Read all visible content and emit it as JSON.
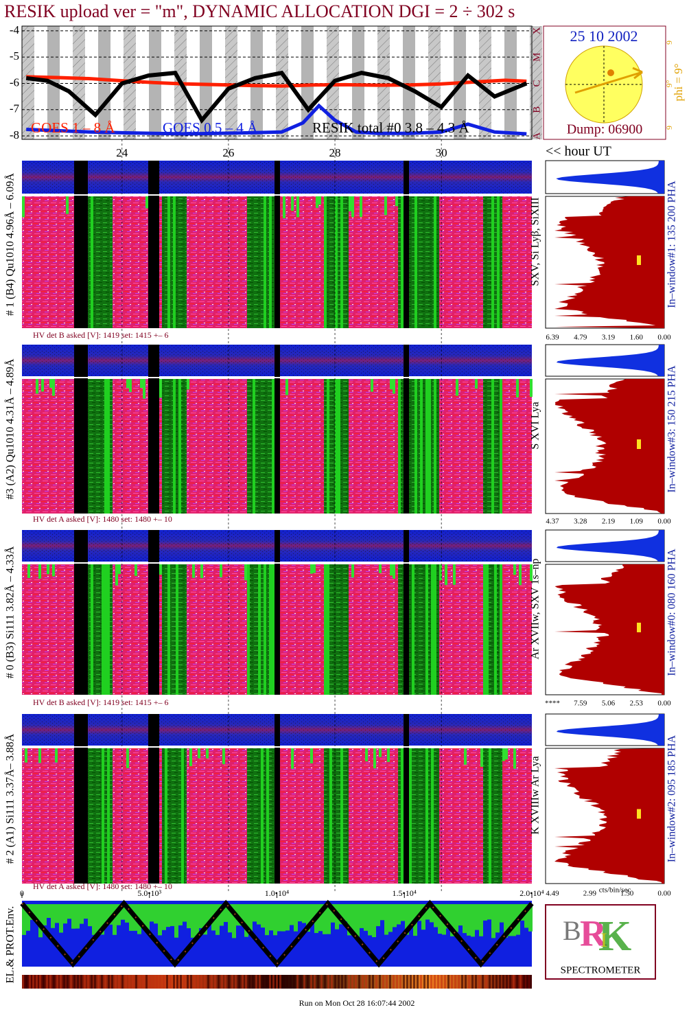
{
  "title": "RESIK upload ver = \"m\", DYNAMIC ALLOCATION  DGI =   2 ÷ 302 s",
  "chart_data": {
    "type": "line",
    "xlim": [
      22.12,
      31.7
    ],
    "xticks": [
      24,
      26,
      28,
      30
    ],
    "ylim": [
      -8.13,
      -3.82
    ],
    "yticks": [
      -4,
      -5,
      -6,
      -7,
      -8
    ],
    "classes": [
      "X",
      "M",
      "C",
      "B",
      "A"
    ],
    "series": [
      {
        "name": "GOES 1 – 8 Å",
        "color": "#ff2000",
        "x": [
          22.2,
          22.8,
          23.4,
          24.0,
          24.6,
          25.2,
          25.8,
          26.4,
          27.0,
          27.6,
          28.2,
          28.8,
          29.4,
          30.0,
          30.6,
          31.2,
          31.6
        ],
        "values": [
          -5.75,
          -5.78,
          -5.82,
          -5.9,
          -5.97,
          -6.02,
          -6.05,
          -6.08,
          -6.1,
          -6.06,
          -6.05,
          -6.07,
          -6.06,
          -6.02,
          -5.95,
          -5.88,
          -5.92
        ]
      },
      {
        "name": "GOES 0.5 – 4 Å",
        "color": "#1020e0",
        "x": [
          22.2,
          22.8,
          23.4,
          24.0,
          24.6,
          25.2,
          25.8,
          26.4,
          27.0,
          27.4,
          27.7,
          28.0,
          28.4,
          28.8,
          29.4,
          30.0,
          30.5,
          31.0,
          31.6
        ],
        "values": [
          -7.75,
          -7.8,
          -7.85,
          -7.88,
          -7.9,
          -7.92,
          -7.9,
          -7.88,
          -7.85,
          -7.5,
          -6.85,
          -7.4,
          -7.85,
          -7.9,
          -7.9,
          -7.85,
          -7.55,
          -7.85,
          -7.92
        ]
      },
      {
        "name": "RESIK total #0 3.8 – 4.3 Å",
        "color": "#000000",
        "x": [
          22.2,
          22.6,
          23.0,
          23.5,
          24.0,
          24.5,
          25.0,
          25.5,
          26.0,
          26.5,
          27.0,
          27.5,
          28.0,
          28.5,
          29.0,
          29.5,
          30.0,
          30.5,
          31.0,
          31.6
        ],
        "values": [
          -5.8,
          -5.9,
          -6.3,
          -7.2,
          -6.0,
          -5.7,
          -5.6,
          -7.4,
          -6.2,
          -5.8,
          -5.6,
          -7.0,
          -5.9,
          -5.6,
          -5.8,
          -6.3,
          -6.9,
          -5.7,
          -6.5,
          -6.0
        ]
      }
    ]
  },
  "hour_label": "<< hour UT",
  "sun": {
    "date": "25 10 2002",
    "dump": "Dump: 06900",
    "phi": "phi =  9°",
    "top": "9",
    "mid": "9°",
    "bottom": "9"
  },
  "panels": [
    {
      "label": "# 1 (B4) Qu1010 4.96Å – 6.09Å",
      "hv": "HV det B asked [V]:  1419 set:  1415  +–    6",
      "line": "SXV, Si Lyβ, SiXIII",
      "window": "In–window#1:  135 200 PHA",
      "hist_ticks": [
        "6.39",
        "4.79",
        "3.19",
        "1.60",
        "0.00"
      ]
    },
    {
      "label": "#3 (A2) Qu1010  4.31Å – 4.89Å",
      "hv": "HV det A asked [V]:  1480 set:  1480  +–    10",
      "line": "S XVI Lya",
      "window": "In–window#3:  150 215 PHA",
      "hist_ticks": [
        "4.37",
        "3.28",
        "2.19",
        "1.09",
        "0.00"
      ]
    },
    {
      "label": "# 0 (B3) Si111  3.82Å – 4.33Å",
      "hv": "HV det B asked [V]:  1419 set:  1415  +–    6",
      "line": "Ar XVIIw, SXV 1s–np",
      "window": "In–window#0:  080 160 PHA",
      "hist_ticks": [
        "****",
        "7.59",
        "5.06",
        "2.53",
        "0.00"
      ]
    },
    {
      "label": "# 2 (A1) Si111  3.37Å– 3.88Å",
      "hv": "HV det A asked [V]:  1480 set:  1480  +–    10",
      "line": "K XVIIIw  Ar Lya",
      "window": "In–window#2:  095 185 PHA",
      "hist_ticks": [
        "4.49",
        "2.99",
        "1.50",
        "0.00"
      ]
    }
  ],
  "cts_label": "cts/bin/sec",
  "env": {
    "label": "EL.& PROT.Env.",
    "xlim": [
      0,
      20000
    ],
    "xticks": [
      0,
      {
        "value": 5000,
        "label": "5.0•10³"
      },
      {
        "value": 10000,
        "label": "1.0•10⁴"
      },
      {
        "value": 15000,
        "label": "1.5•10⁴"
      },
      {
        "value": 20000,
        "label": "2.0•10⁴"
      }
    ]
  },
  "logo": "SPECTROMETER",
  "footer": "Run on Mon Oct 28 16:07:44 2002"
}
